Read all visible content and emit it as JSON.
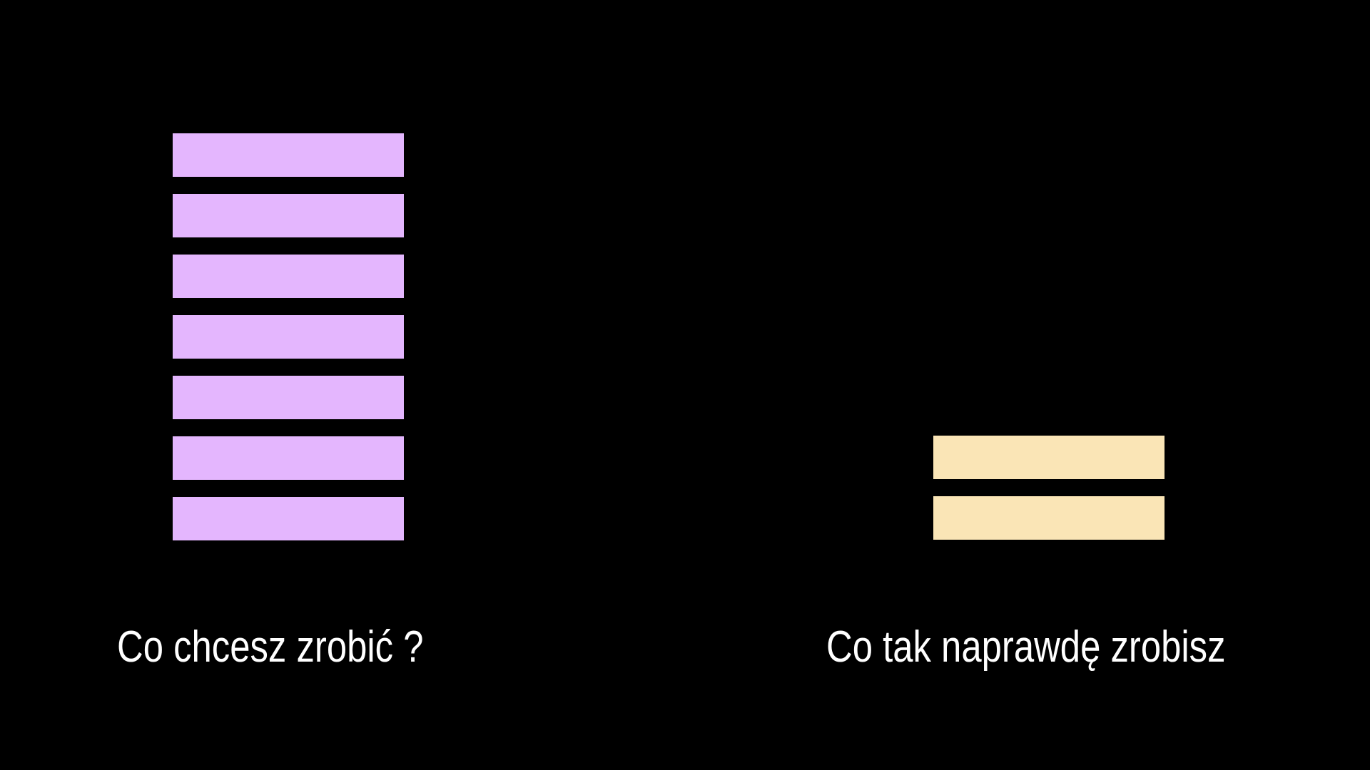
{
  "left": {
    "caption": "Co chcesz zrobić ?",
    "block_count": 7,
    "block_color": "#e4b6fe"
  },
  "right": {
    "caption": "Co tak naprawdę zrobisz",
    "block_count": 2,
    "block_color": "#fae5b6"
  },
  "background_color": "#000000"
}
